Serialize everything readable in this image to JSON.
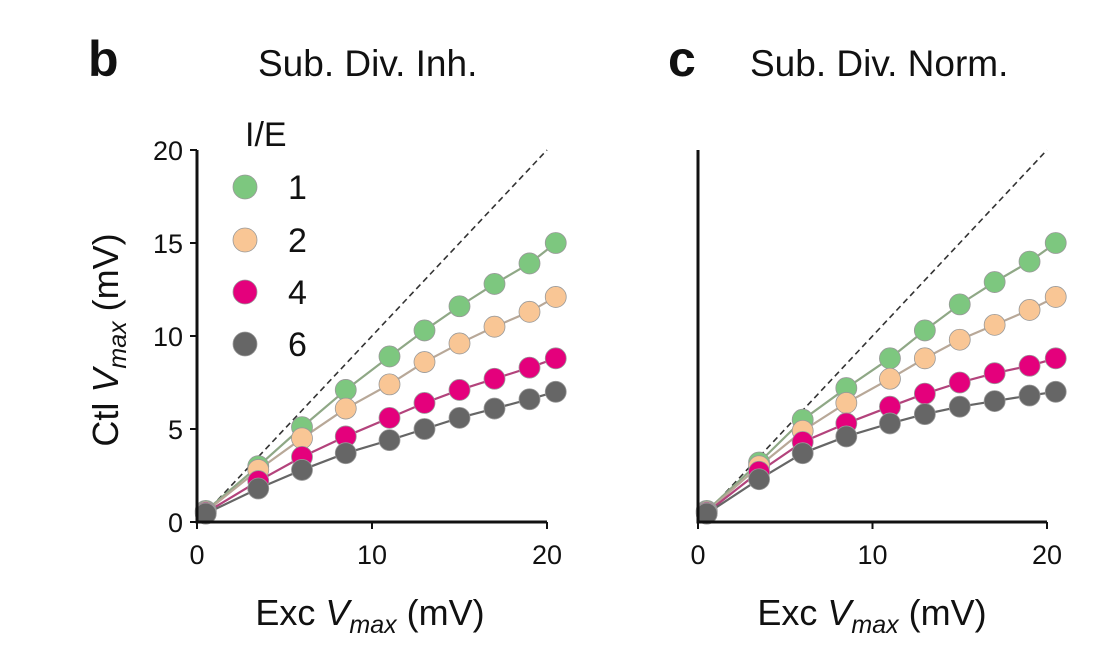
{
  "chart_data": [
    {
      "type": "line",
      "panel_letter": "b",
      "title": "Sub. Div. Inh.",
      "xlabel": {
        "prefix": "Exc ",
        "var": "V",
        "sub": "max",
        "unit": " (mV)"
      },
      "ylabel": {
        "prefix": "Ctl ",
        "var": "V",
        "sub": "max",
        "unit": " (mV)"
      },
      "xlim": [
        0,
        20
      ],
      "ylim": [
        0,
        20
      ],
      "xticks": [
        "0",
        "10",
        "20"
      ],
      "yticks": [
        "0",
        "5",
        "10",
        "15",
        "20"
      ],
      "identity_line": true,
      "legend": {
        "title": "I/E",
        "placement": "top-left"
      },
      "x": [
        0.5,
        3.5,
        6,
        8.5,
        11,
        13,
        15,
        17,
        19,
        20.5
      ],
      "series": [
        {
          "name": "1",
          "color": "#7dc77f",
          "line_color": "#8fa886",
          "values": [
            0.6,
            3.0,
            5.1,
            7.1,
            8.9,
            10.3,
            11.6,
            12.8,
            13.9,
            15.0
          ]
        },
        {
          "name": "2",
          "color": "#f9c695",
          "line_color": "#b8a898",
          "values": [
            0.55,
            2.8,
            4.5,
            6.1,
            7.4,
            8.6,
            9.6,
            10.5,
            11.3,
            12.1
          ]
        },
        {
          "name": "4",
          "color": "#e4007c",
          "line_color": "#b3437c",
          "values": [
            0.5,
            2.2,
            3.5,
            4.6,
            5.6,
            6.4,
            7.1,
            7.7,
            8.3,
            8.8
          ]
        },
        {
          "name": "6",
          "color": "#666666",
          "line_color": "#666666",
          "values": [
            0.45,
            1.8,
            2.8,
            3.7,
            4.4,
            5.0,
            5.6,
            6.1,
            6.6,
            7.0
          ]
        }
      ]
    },
    {
      "type": "line",
      "panel_letter": "c",
      "title": "Sub. Div. Norm.",
      "xlabel": {
        "prefix": "Exc ",
        "var": "V",
        "sub": "max",
        "unit": " (mV)"
      },
      "ylabel": null,
      "xlim": [
        0,
        20
      ],
      "ylim": [
        0,
        20
      ],
      "xticks": [
        "0",
        "10",
        "20"
      ],
      "yticks": [],
      "identity_line": true,
      "x": [
        0.5,
        3.5,
        6,
        8.5,
        11,
        13,
        15,
        17,
        19,
        20.5
      ],
      "series": [
        {
          "color": "#7dc77f",
          "line_color": "#8fa886",
          "values": [
            0.6,
            3.2,
            5.5,
            7.2,
            8.8,
            10.3,
            11.7,
            12.9,
            14.0,
            15.0
          ]
        },
        {
          "color": "#f9c695",
          "line_color": "#b8a898",
          "values": [
            0.55,
            3.0,
            4.9,
            6.4,
            7.7,
            8.8,
            9.8,
            10.6,
            11.4,
            12.1
          ]
        },
        {
          "color": "#e4007c",
          "line_color": "#b3437c",
          "values": [
            0.5,
            2.7,
            4.3,
            5.3,
            6.2,
            6.9,
            7.5,
            8.0,
            8.4,
            8.8
          ]
        },
        {
          "color": "#666666",
          "line_color": "#666666",
          "values": [
            0.45,
            2.3,
            3.7,
            4.6,
            5.3,
            5.8,
            6.2,
            6.5,
            6.8,
            7.0
          ]
        }
      ]
    }
  ]
}
